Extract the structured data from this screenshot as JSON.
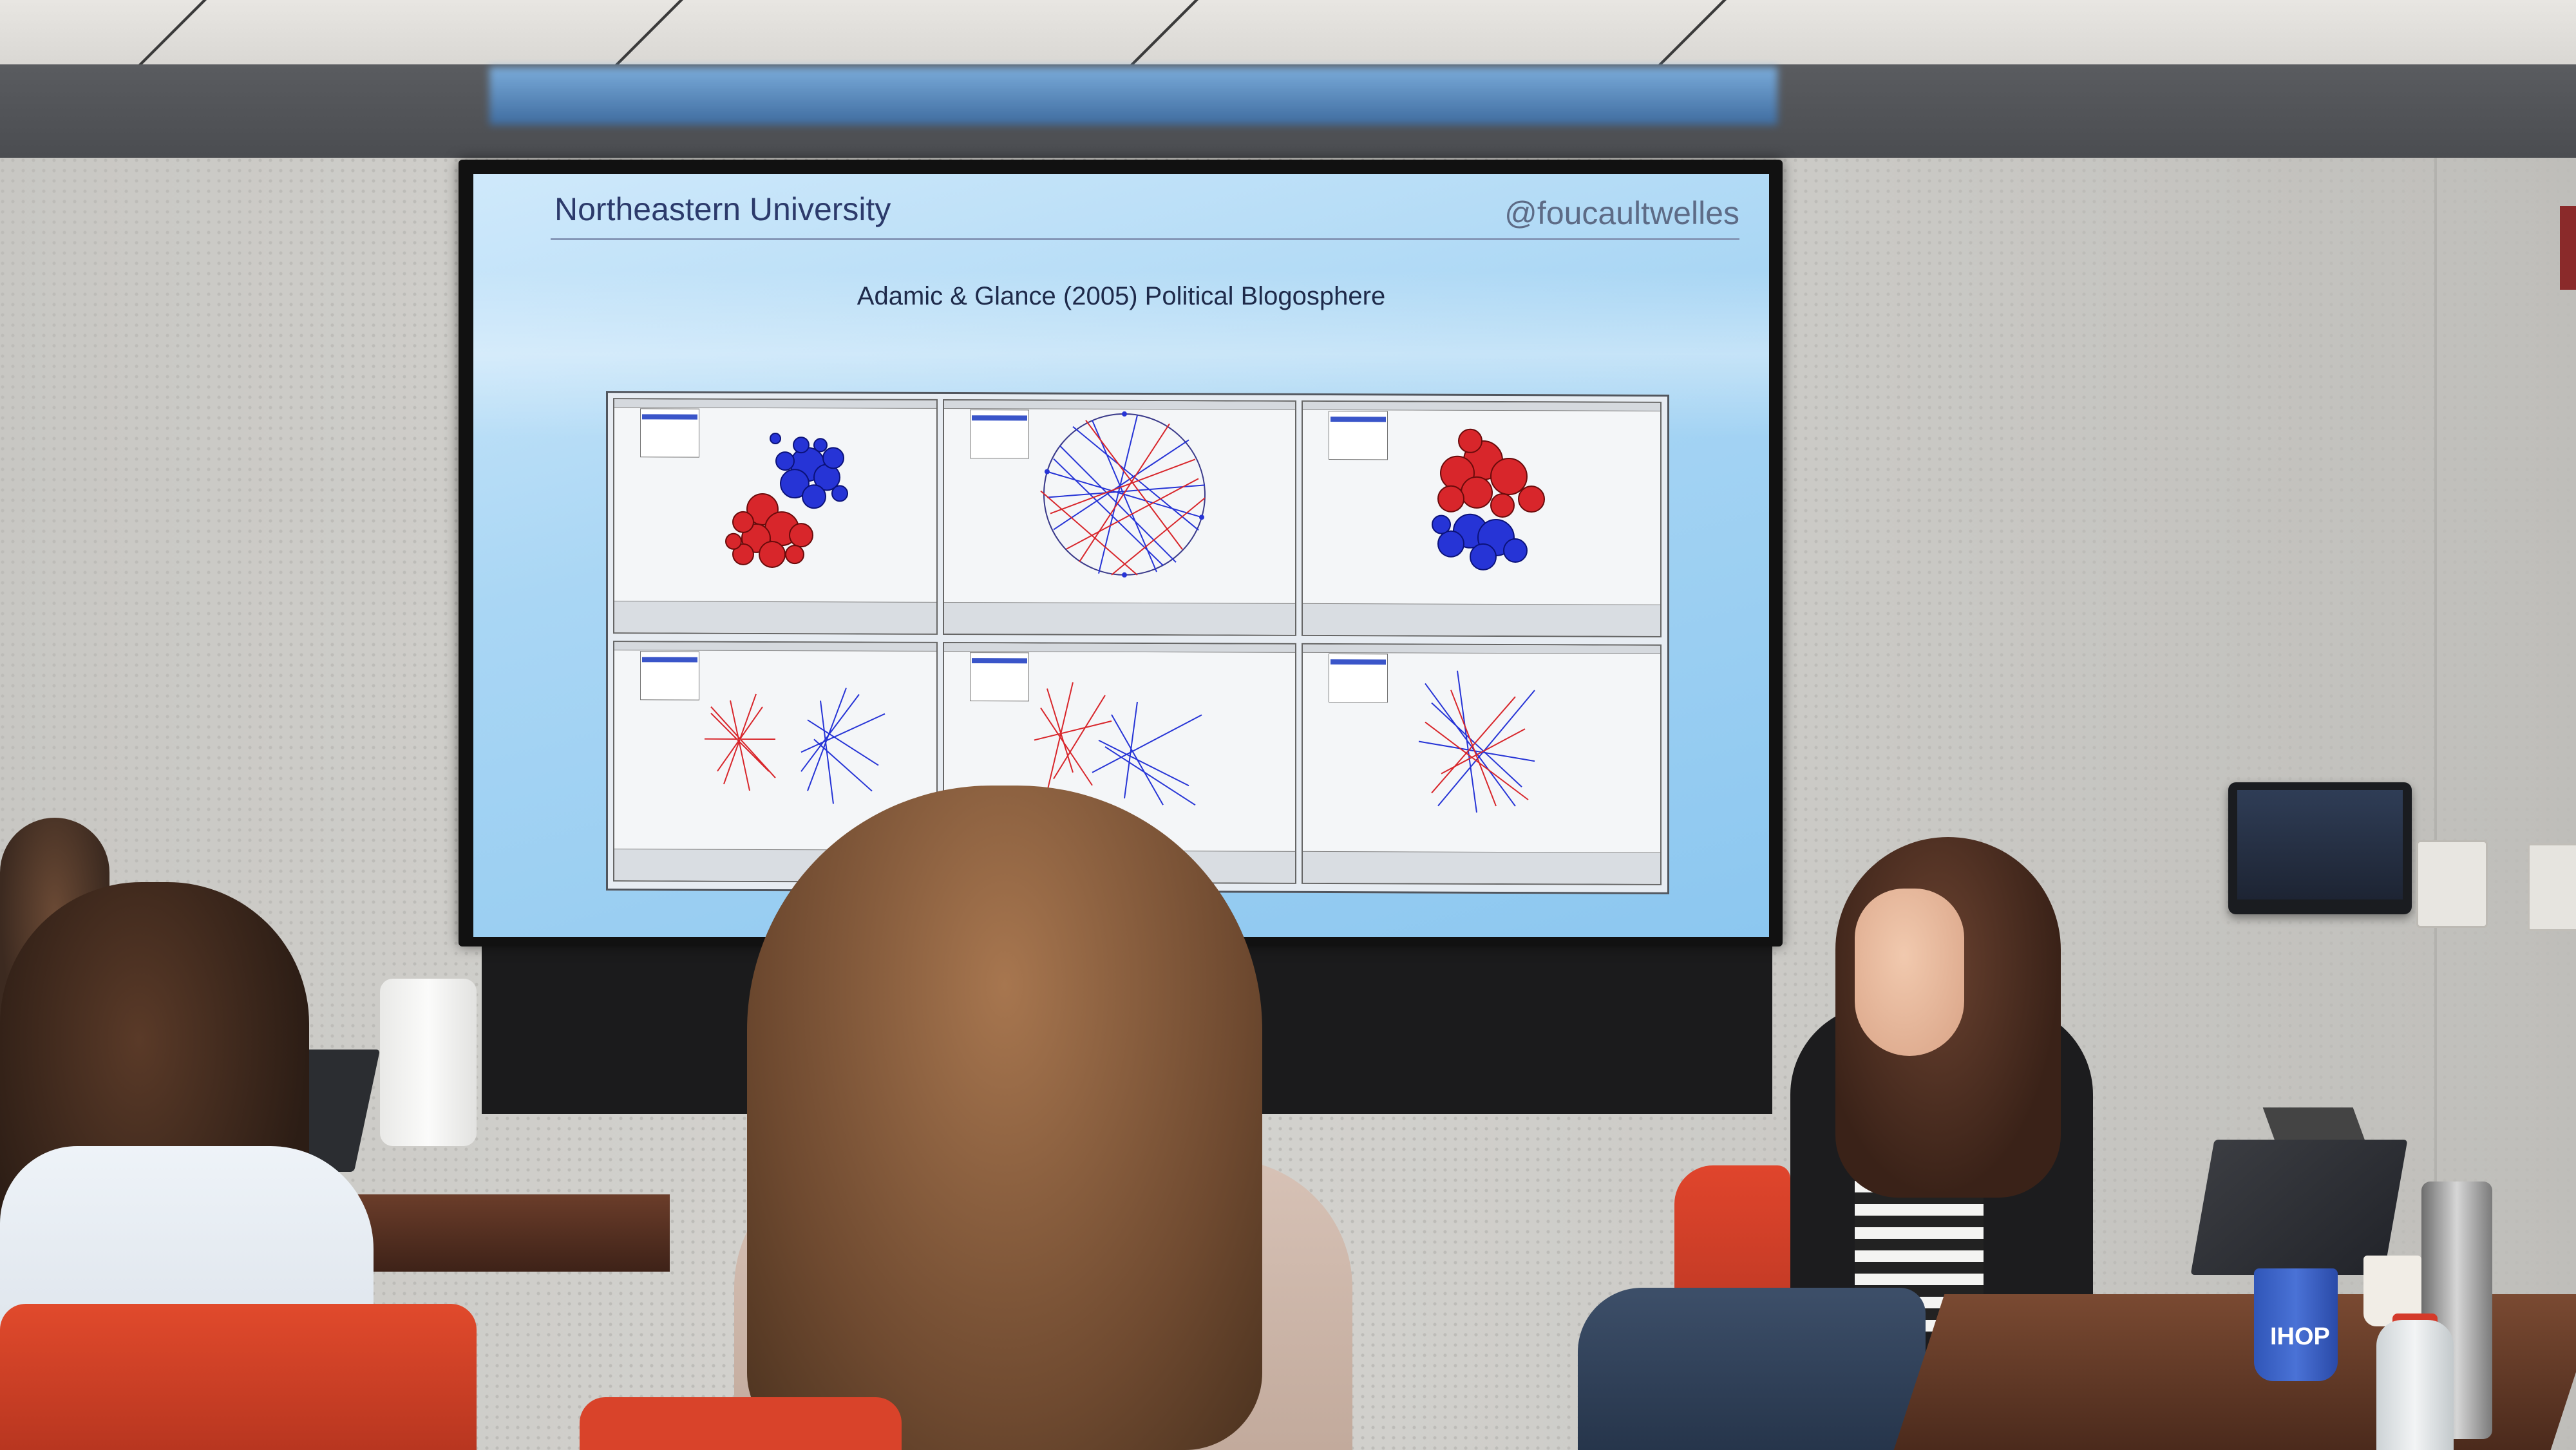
{
  "slide": {
    "header_left": "Northeastern University",
    "header_right": "@foucaultwelles",
    "title": "Adamic & Glance (2005) Political Blogosphere"
  },
  "cup": {
    "label": "IHOP"
  },
  "colors": {
    "red_nodes": "#d8262b",
    "blue_nodes": "#2634d6",
    "slide_bg": "#a9d6f4"
  }
}
